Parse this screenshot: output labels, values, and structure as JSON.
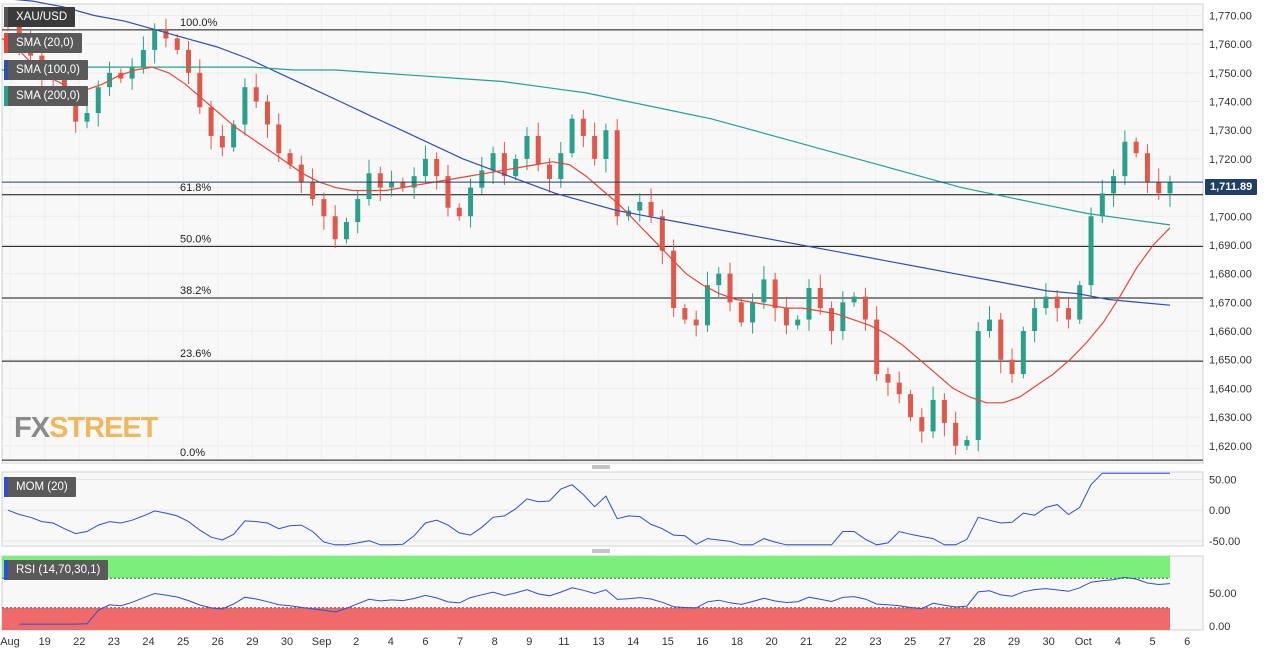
{
  "symbol": "XAU/USD",
  "indicators": {
    "sma20": {
      "label": "SMA (20,0)",
      "color": "#e8463a"
    },
    "sma100": {
      "label": "SMA (100,0)",
      "color": "#2f4fb0"
    },
    "sma200": {
      "label": "SMA (200,0)",
      "color": "#21a48a"
    },
    "mom": {
      "label": "MOM (20)",
      "color": "#2f4fd0"
    },
    "rsi": {
      "label": "RSI (14,70,30,1)",
      "color": "#2f4fd0"
    }
  },
  "current_price": "1,711.89",
  "logo": {
    "part1": "FX",
    "part2": "STREET"
  },
  "colors": {
    "up": "#2aa08a",
    "down": "#e0584a",
    "overbought": "#7af07a",
    "oversold": "#f06a6a"
  },
  "chart_data": {
    "type": "line",
    "price_axis": {
      "ylim": [
        1614,
        1774
      ],
      "ticks": [
        1620,
        1630,
        1640,
        1650,
        1660,
        1670,
        1680,
        1690,
        1700,
        1710,
        1720,
        1730,
        1740,
        1750,
        1760,
        1770
      ],
      "tick_labels": [
        "1,620.00",
        "1,630.00",
        "1,640.00",
        "1,650.00",
        "1,660.00",
        "1,670.00",
        "1,680.00",
        "1,690.00",
        "1,700.00",
        "1,710.00",
        "1,720.00",
        "1,730.00",
        "1,740.00",
        "1,750.00",
        "1,760.00",
        "1,770.00"
      ]
    },
    "x_labels": [
      "Aug",
      "19",
      "22",
      "23",
      "24",
      "25",
      "26",
      "29",
      "30",
      "Sep",
      "2",
      "4",
      "6",
      "7",
      "8",
      "9",
      "11",
      "13",
      "14",
      "15",
      "16",
      "18",
      "20",
      "21",
      "22",
      "23",
      "25",
      "27",
      "28",
      "29",
      "30",
      "Oct",
      "4",
      "5",
      "6"
    ],
    "fibonacci": [
      {
        "label": "100.0%",
        "price": 1765
      },
      {
        "label": "61.8%",
        "price": 1707.5
      },
      {
        "label": "50.0%",
        "price": 1689.5
      },
      {
        "label": "38.2%",
        "price": 1671.5
      },
      {
        "label": "23.6%",
        "price": 1649.5
      },
      {
        "label": "0.0%",
        "price": 1615
      }
    ],
    "closes": [
      1766,
      1760,
      1756,
      1750,
      1748,
      1740,
      1733,
      1736,
      1745,
      1750,
      1748,
      1752,
      1758,
      1765,
      1762,
      1758,
      1750,
      1738,
      1728,
      1724,
      1732,
      1745,
      1740,
      1732,
      1722,
      1718,
      1712,
      1706,
      1700,
      1692,
      1698,
      1706,
      1715,
      1710,
      1712,
      1710,
      1714,
      1720,
      1714,
      1703,
      1700,
      1710,
      1716,
      1722,
      1714,
      1720,
      1728,
      1718,
      1713,
      1722,
      1734,
      1728,
      1720,
      1730,
      1700,
      1702,
      1705,
      1700,
      1688,
      1668,
      1664,
      1662,
      1676,
      1680,
      1670,
      1663,
      1670,
      1678,
      1668,
      1662,
      1664,
      1675,
      1668,
      1660,
      1670,
      1672,
      1664,
      1645,
      1642,
      1638,
      1630,
      1625,
      1636,
      1628,
      1620,
      1622,
      1660,
      1664,
      1650,
      1645,
      1660,
      1668,
      1672,
      1668,
      1664,
      1676,
      1700,
      1708,
      1714,
      1726,
      1722,
      1712,
      1708,
      1711.89
    ],
    "sma20": [
      1762,
      1758,
      1752,
      1748,
      1745,
      1744,
      1746,
      1749,
      1751,
      1752,
      1750,
      1746,
      1741,
      1736,
      1731,
      1727,
      1723,
      1719,
      1715,
      1712,
      1710,
      1709,
      1709,
      1709,
      1710,
      1711,
      1712,
      1713,
      1714,
      1715,
      1716,
      1717,
      1718,
      1719,
      1718,
      1714,
      1709,
      1704,
      1698,
      1692,
      1686,
      1680,
      1676,
      1673,
      1671,
      1670,
      1669,
      1668,
      1668,
      1667,
      1666,
      1664,
      1662,
      1659,
      1655,
      1650,
      1645,
      1640,
      1637,
      1635,
      1635,
      1637,
      1641,
      1645,
      1650,
      1656,
      1663,
      1672,
      1682,
      1690,
      1696
    ],
    "sma100": [
      1776,
      1775,
      1773,
      1770,
      1768,
      1765,
      1762,
      1759,
      1755,
      1750,
      1745,
      1740,
      1735,
      1730,
      1725,
      1720,
      1716,
      1712,
      1708,
      1705,
      1702,
      1700,
      1698,
      1696,
      1694,
      1692,
      1690,
      1688,
      1686,
      1684,
      1682,
      1680,
      1678,
      1676,
      1674,
      1673,
      1671,
      1670,
      1669
    ],
    "sma200": [
      1751,
      1751,
      1752,
      1752,
      1752,
      1752,
      1752,
      1751,
      1751,
      1750,
      1749,
      1748,
      1747,
      1745,
      1743,
      1740,
      1737,
      1734,
      1730,
      1726,
      1722,
      1718,
      1714,
      1710,
      1707,
      1704,
      1701,
      1699,
      1697
    ],
    "momentum": {
      "ylim": [
        -58,
        62
      ],
      "ticks": [
        -50,
        0,
        50
      ],
      "tick_labels": [
        "-50.00",
        "0.00",
        "50.00"
      ]
    },
    "rsi": {
      "ylim": [
        0,
        100
      ],
      "overbought": 70,
      "oversold": 30,
      "ticks": [
        0,
        50
      ],
      "tick_labels": [
        "0.00",
        "50.00"
      ]
    }
  }
}
